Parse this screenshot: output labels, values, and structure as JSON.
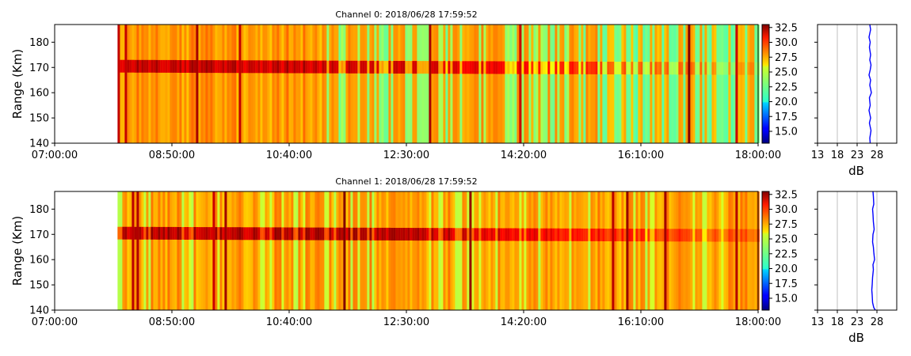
{
  "panels": [
    {
      "title": "Channel 0: 2018/06/28 17:59:52",
      "ylabel": "Range (Km)",
      "profile_xlabel": "dB"
    },
    {
      "title": "Channel 1: 2018/06/28 17:59:52",
      "ylabel": "Range (Km)",
      "profile_xlabel": "dB"
    }
  ],
  "chart_data": [
    {
      "type": "heatmap",
      "title": "Channel 0: 2018/06/28 17:59:52",
      "ylabel": "Range (Km)",
      "x_tick_labels": [
        "07:00:00",
        "08:50:00",
        "10:40:00",
        "12:30:00",
        "14:20:00",
        "16:10:00",
        "18:00:00"
      ],
      "y_ticks": [
        140,
        150,
        160,
        170,
        180
      ],
      "ylim": [
        140,
        187
      ],
      "colorbar_ticks": [
        "15.0",
        "17.5",
        "20.0",
        "22.5",
        "25.0",
        "27.5",
        "30.0",
        "32.5"
      ],
      "colorbar_range": [
        13,
        33
      ],
      "colormap": "jet",
      "data_start": "07:59:00",
      "layer_range_km": [
        168,
        173
      ],
      "profile": {
        "type": "line",
        "xlabel": "dB",
        "x_tick_labels": [
          "13",
          "18",
          "23",
          "28"
        ],
        "xlim": [
          13,
          33
        ],
        "ylim": [
          140,
          187
        ],
        "grid": true,
        "color": "#0000ff",
        "x": [
          26.3,
          26.2,
          26.5,
          26.1,
          26.4,
          26.0,
          26.3,
          26.1,
          26.6,
          26.2,
          26.4,
          26.0,
          26.3,
          26.5,
          26.2,
          26.4,
          26.1,
          26.3,
          26.0,
          26.4,
          26.2
        ],
        "y": [
          140,
          142,
          145,
          148,
          150,
          153,
          155,
          158,
          160,
          163,
          165,
          167,
          169,
          171,
          173,
          175,
          178,
          180,
          182,
          185,
          187
        ]
      }
    },
    {
      "type": "heatmap",
      "title": "Channel 1: 2018/06/28 17:59:52",
      "ylabel": "Range (Km)",
      "x_tick_labels": [
        "07:00:00",
        "08:50:00",
        "10:40:00",
        "12:30:00",
        "14:20:00",
        "16:10:00",
        "18:00:00"
      ],
      "y_ticks": [
        140,
        150,
        160,
        170,
        180
      ],
      "ylim": [
        140,
        187
      ],
      "colorbar_ticks": [
        "15.0",
        "17.5",
        "20.0",
        "22.5",
        "25.0",
        "27.5",
        "30.0",
        "32.5"
      ],
      "colorbar_range": [
        13,
        33
      ],
      "colormap": "jet",
      "data_start": "07:59:00",
      "layer_range_km": [
        168,
        173
      ],
      "profile": {
        "type": "line",
        "xlabel": "dB",
        "x_tick_labels": [
          "13",
          "18",
          "23",
          "28"
        ],
        "xlim": [
          13,
          33
        ],
        "ylim": [
          140,
          187
        ],
        "grid": true,
        "color": "#0000ff",
        "x": [
          27.6,
          27.2,
          26.9,
          26.8,
          26.7,
          26.8,
          26.9,
          27.1,
          27.0,
          27.4,
          27.2,
          27.1,
          26.9,
          27.0,
          27.3,
          27.1,
          27.0,
          26.9,
          27.2,
          27.1,
          27.0
        ],
        "y": [
          140,
          141,
          143,
          146,
          148,
          150,
          153,
          156,
          158,
          160,
          163,
          165,
          167,
          170,
          172,
          175,
          178,
          180,
          182,
          185,
          187
        ]
      }
    }
  ]
}
